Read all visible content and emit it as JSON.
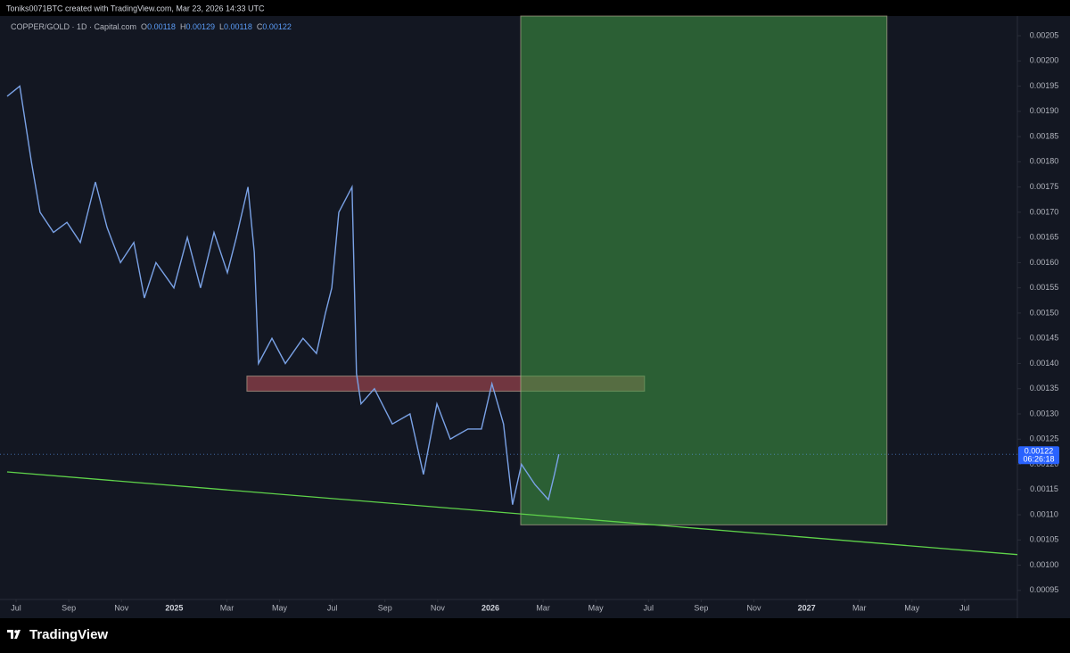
{
  "header": {
    "text": "Toniks0071BTC created with TradingView.com, Mar 23, 2026 14:33 UTC"
  },
  "footer": {
    "brand": "TradingView"
  },
  "chart_data": {
    "type": "line",
    "legend": {
      "symbol": "COPPER/GOLD · 1D · Capital.com",
      "ohlc": [
        {
          "key": "O",
          "value": 0.00118
        },
        {
          "key": "H",
          "value": 0.00129
        },
        {
          "key": "L",
          "value": 0.00118
        },
        {
          "key": "C",
          "value": 0.00122
        }
      ]
    },
    "series": [
      {
        "name": "COPPER/GOLD",
        "color": "#7aa2e6",
        "x": [
          -0.34,
          0.14,
          0.58,
          0.91,
          1.42,
          1.93,
          2.44,
          3.01,
          3.45,
          3.96,
          4.47,
          4.87,
          5.31,
          5.99,
          6.5,
          7.0,
          7.51,
          8.02,
          8.36,
          8.8,
          9.04,
          9.2,
          9.71,
          10.22,
          10.89,
          11.4,
          11.74,
          11.98,
          12.25,
          12.75,
          12.92,
          13.09,
          13.6,
          14.28,
          14.95,
          15.46,
          15.97,
          16.48,
          17.15,
          17.66,
          18.06,
          18.5,
          18.84,
          19.18,
          19.69,
          20.2,
          20.43,
          20.6
        ],
        "values": [
          0.00193,
          0.00195,
          0.0018,
          0.0017,
          0.00166,
          0.00168,
          0.00164,
          0.00176,
          0.00167,
          0.0016,
          0.00164,
          0.00153,
          0.0016,
          0.00155,
          0.00165,
          0.00155,
          0.00166,
          0.00158,
          0.00165,
          0.00175,
          0.00162,
          0.0014,
          0.00145,
          0.0014,
          0.00145,
          0.00142,
          0.0015,
          0.00155,
          0.0017,
          0.00175,
          0.00138,
          0.00132,
          0.00135,
          0.00128,
          0.0013,
          0.00118,
          0.00132,
          0.00125,
          0.00127,
          0.00127,
          0.00136,
          0.00128,
          0.00112,
          0.0012,
          0.00116,
          0.00113,
          0.00118,
          0.00122
        ]
      }
    ],
    "last_price": {
      "value": 0.00122,
      "label": "0.00122",
      "countdown": "06:26:18"
    },
    "zones": [
      {
        "color": "#c0505a",
        "x": [
          8.76,
          23.85
        ],
        "y": [
          0.001345,
          0.001375
        ]
      },
      {
        "color": "#3f9a44",
        "x": [
          19.15,
          33.05
        ],
        "y": [
          0.00108,
          0.002089
        ]
      }
    ],
    "trendline": {
      "color": "#5fd34a",
      "x": [
        -0.34,
        38.0
      ],
      "y": [
        0.001185,
        0.001021
      ]
    },
    "xlim": [
      -0.61,
      38.0
    ],
    "ylim": [
      0.000932,
      0.002089
    ],
    "xticks": [
      {
        "value": 0,
        "label": "Jul"
      },
      {
        "value": 2,
        "label": "Sep"
      },
      {
        "value": 4,
        "label": "Nov"
      },
      {
        "value": 6,
        "label": "2025"
      },
      {
        "value": 8,
        "label": "Mar"
      },
      {
        "value": 10,
        "label": "May"
      },
      {
        "value": 12,
        "label": "Jul"
      },
      {
        "value": 14,
        "label": "Sep"
      },
      {
        "value": 16,
        "label": "Nov"
      },
      {
        "value": 18,
        "label": "2026"
      },
      {
        "value": 20,
        "label": "Mar"
      },
      {
        "value": 22,
        "label": "May"
      },
      {
        "value": 24,
        "label": "Jul"
      },
      {
        "value": 26,
        "label": "Sep"
      },
      {
        "value": 28,
        "label": "Nov"
      },
      {
        "value": 30,
        "label": "2027"
      },
      {
        "value": 32,
        "label": "Mar"
      },
      {
        "value": 34,
        "label": "May"
      },
      {
        "value": 36,
        "label": "Jul"
      }
    ],
    "yticks": [
      {
        "value": 0.00095,
        "label": "0.00095"
      },
      {
        "value": 0.001,
        "label": "0.00100"
      },
      {
        "value": 0.00105,
        "label": "0.00105"
      },
      {
        "value": 0.0011,
        "label": "0.00110"
      },
      {
        "value": 0.00115,
        "label": "0.00115"
      },
      {
        "value": 0.0012,
        "label": "0.00120"
      },
      {
        "value": 0.00125,
        "label": "0.00125"
      },
      {
        "value": 0.0013,
        "label": "0.00130"
      },
      {
        "value": 0.00135,
        "label": "0.00135"
      },
      {
        "value": 0.0014,
        "label": "0.00140"
      },
      {
        "value": 0.00145,
        "label": "0.00145"
      },
      {
        "value": 0.0015,
        "label": "0.00150"
      },
      {
        "value": 0.00155,
        "label": "0.00155"
      },
      {
        "value": 0.0016,
        "label": "0.00160"
      },
      {
        "value": 0.00165,
        "label": "0.00165"
      },
      {
        "value": 0.0017,
        "label": "0.00170"
      },
      {
        "value": 0.00175,
        "label": "0.00175"
      },
      {
        "value": 0.0018,
        "label": "0.00180"
      },
      {
        "value": 0.00185,
        "label": "0.00185"
      },
      {
        "value": 0.0019,
        "label": "0.00190"
      },
      {
        "value": 0.00195,
        "label": "0.00195"
      },
      {
        "value": 0.002,
        "label": "0.00200"
      },
      {
        "value": 0.00205,
        "label": "0.00205"
      }
    ]
  }
}
